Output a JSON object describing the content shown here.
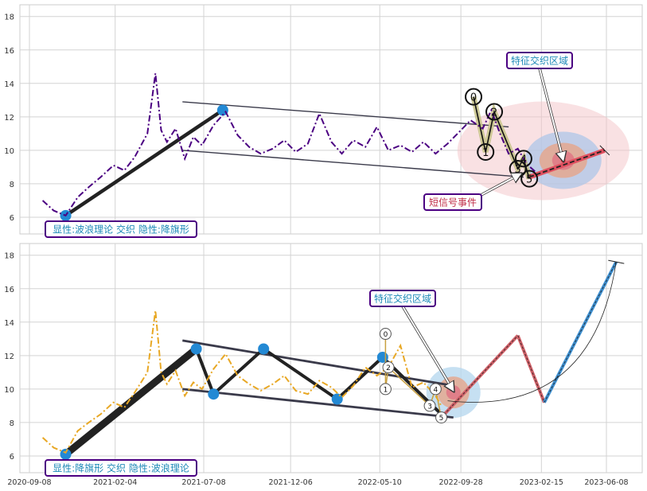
{
  "chart_data": [
    {
      "type": "line",
      "title": "",
      "xlabel": "",
      "ylabel": "",
      "ylim": [
        5,
        18.7
      ],
      "yticks": [
        6,
        8,
        10,
        12,
        14,
        16,
        18
      ],
      "grid": true,
      "series": [
        {
          "style": "dash-dot",
          "color": "#4b0082",
          "x": [
            "2020-10-01",
            "2020-10-20",
            "2020-11-10",
            "2020-12-01",
            "2020-12-20",
            "2021-01-10",
            "2021-02-01",
            "2021-02-20",
            "2021-03-10",
            "2021-04-01",
            "2021-04-15",
            "2021-04-25",
            "2021-05-05",
            "2021-05-20",
            "2021-06-05",
            "2021-06-20",
            "2021-07-05",
            "2021-07-25",
            "2021-08-15",
            "2021-09-05",
            "2021-09-25",
            "2021-10-15",
            "2021-11-05",
            "2021-11-25",
            "2021-12-15",
            "2022-01-05",
            "2022-01-25",
            "2022-02-15",
            "2022-03-05",
            "2022-03-25",
            "2022-04-15",
            "2022-05-05",
            "2022-05-25",
            "2022-06-15",
            "2022-07-05",
            "2022-07-25",
            "2022-08-15",
            "2022-09-05",
            "2022-09-25",
            "2022-10-15",
            "2022-11-05",
            "2022-11-20",
            "2022-12-05",
            "2022-12-20",
            "2023-01-05",
            "2023-01-20",
            "2023-02-05"
          ],
          "y": [
            7.0,
            6.4,
            6.1,
            7.2,
            7.8,
            8.4,
            9.1,
            8.8,
            9.6,
            11.0,
            14.6,
            11.2,
            10.5,
            11.3,
            9.5,
            10.8,
            10.3,
            11.5,
            12.3,
            10.9,
            10.2,
            9.8,
            10.1,
            10.6,
            9.9,
            10.4,
            12.2,
            10.5,
            9.8,
            10.6,
            10.2,
            11.4,
            10.0,
            10.3,
            9.9,
            10.5,
            9.8,
            10.4,
            11.1,
            11.8,
            11.3,
            12.4,
            11.0,
            9.8,
            10.1,
            9.2,
            8.7
          ]
        }
      ],
      "pattern_lines": [
        {
          "x": [
            "2021-06-01",
            "2022-12-20"
          ],
          "y": [
            12.9,
            11.4
          ],
          "role": "channel-upper"
        },
        {
          "x": [
            "2021-06-01",
            "2023-01-15"
          ],
          "y": [
            10.0,
            8.4
          ],
          "role": "channel-lower"
        },
        {
          "x": [
            "2020-11-10",
            "2021-08-10"
          ],
          "y": [
            6.1,
            12.4
          ],
          "role": "pole"
        }
      ],
      "pole_points": {
        "x": [
          "2020-11-10",
          "2021-08-10"
        ],
        "y": [
          6.1,
          12.4
        ]
      },
      "wave_points": [
        {
          "label": "0",
          "x": "2022-10-20",
          "y": 13.2
        },
        {
          "label": "1",
          "x": "2022-11-10",
          "y": 9.9
        },
        {
          "label": "2",
          "x": "2022-11-25",
          "y": 12.3
        },
        {
          "label": "3",
          "x": "2023-01-05",
          "y": 8.9
        },
        {
          "label": "4",
          "x": "2023-01-15",
          "y": 9.5
        },
        {
          "label": "5",
          "x": "2023-01-25",
          "y": 8.3
        }
      ],
      "projection": {
        "x": [
          "2023-01-25",
          "2023-06-05"
        ],
        "y": [
          8.4,
          10.0
        ]
      },
      "ellipse_center": {
        "x": "2023-03-25",
        "y": 9.4
      },
      "annotations": [
        {
          "text": "特征交织区域",
          "target_x": "2023-03-25",
          "target_y": 9.4
        },
        {
          "text": "短信号事件",
          "target_x": "2023-01-10",
          "target_y": 8.6
        },
        {
          "text": "显性:波浪理论 交织 隐性:降旗形"
        }
      ]
    },
    {
      "type": "line",
      "title": "",
      "xlabel": "",
      "ylabel": "",
      "ylim": [
        5,
        18.7
      ],
      "yticks": [
        6,
        8,
        10,
        12,
        14,
        16,
        18
      ],
      "xticks": [
        "2020-09-08",
        "2021-02-04",
        "2021-07-08",
        "2021-12-06",
        "2022-05-10",
        "2022-09-28",
        "2023-02-15",
        "2023-06-08"
      ],
      "grid": true,
      "series": [
        {
          "style": "dash-dot",
          "color": "#e8a825",
          "x": [
            "2020-10-01",
            "2020-10-20",
            "2020-11-10",
            "2020-12-01",
            "2020-12-20",
            "2021-01-10",
            "2021-02-01",
            "2021-02-20",
            "2021-03-10",
            "2021-04-01",
            "2021-04-15",
            "2021-04-25",
            "2021-05-05",
            "2021-05-20",
            "2021-06-05",
            "2021-06-20",
            "2021-07-05",
            "2021-07-25",
            "2021-08-15",
            "2021-09-05",
            "2021-09-25",
            "2021-10-15",
            "2021-11-05",
            "2021-11-25",
            "2021-12-15",
            "2022-01-05",
            "2022-01-25",
            "2022-02-15",
            "2022-03-05",
            "2022-03-25",
            "2022-04-15",
            "2022-05-05",
            "2022-05-25",
            "2022-06-15",
            "2022-07-05",
            "2022-07-25",
            "2022-08-15",
            "2022-08-25"
          ],
          "y": [
            7.1,
            6.5,
            6.2,
            7.5,
            8.0,
            8.5,
            9.2,
            8.9,
            9.8,
            11.0,
            14.7,
            11.0,
            10.3,
            11.1,
            9.6,
            10.4,
            10.0,
            11.2,
            12.1,
            10.8,
            10.3,
            9.9,
            10.3,
            10.8,
            9.9,
            9.7,
            10.5,
            10.1,
            9.5,
            10.2,
            11.3,
            10.8,
            11.3,
            12.6,
            10.1,
            10.4,
            9.6,
            9.0
          ]
        }
      ],
      "flag_points": {
        "x": [
          "2020-11-10",
          "2021-06-25",
          "2021-07-25",
          "2021-10-20",
          "2022-02-25",
          "2022-05-15",
          "2022-08-25"
        ],
        "y": [
          6.1,
          12.4,
          9.7,
          12.4,
          9.4,
          11.9,
          8.5
        ]
      },
      "pattern_lines": [
        {
          "x": [
            "2021-06-01",
            "2022-09-15"
          ],
          "y": [
            12.9,
            10.2
          ],
          "role": "channel-upper"
        },
        {
          "x": [
            "2021-06-01",
            "2022-09-15"
          ],
          "y": [
            10.0,
            8.3
          ],
          "role": "channel-lower"
        }
      ],
      "wave_points": [
        {
          "label": "0",
          "x": "2022-05-20",
          "y": 13.3
        },
        {
          "label": "1",
          "x": "2022-05-20",
          "y": 10.0
        },
        {
          "label": "2",
          "x": "2022-05-25",
          "y": 11.3
        },
        {
          "label": "3",
          "x": "2022-08-05",
          "y": 9.0
        },
        {
          "label": "4",
          "x": "2022-08-15",
          "y": 10.0
        },
        {
          "label": "5",
          "x": "2022-08-25",
          "y": 8.3
        }
      ],
      "projection_path": {
        "x": [
          "2022-08-25",
          "2023-01-05",
          "2023-02-20",
          "2023-06-25"
        ],
        "y": [
          8.3,
          13.2,
          9.2,
          17.6
        ]
      },
      "projection_curve": {
        "x": [
          "2022-09-05",
          "2023-06-25"
        ],
        "y": [
          9.3,
          17.6
        ]
      },
      "ellipse_center": {
        "x": "2022-09-15",
        "y": 9.8
      },
      "annotations": [
        {
          "text": "特征交织区域",
          "target_x": "2022-09-15",
          "target_y": 9.9
        },
        {
          "text": "显性:降旗形 交织 隐性:波浪理论"
        }
      ]
    }
  ]
}
